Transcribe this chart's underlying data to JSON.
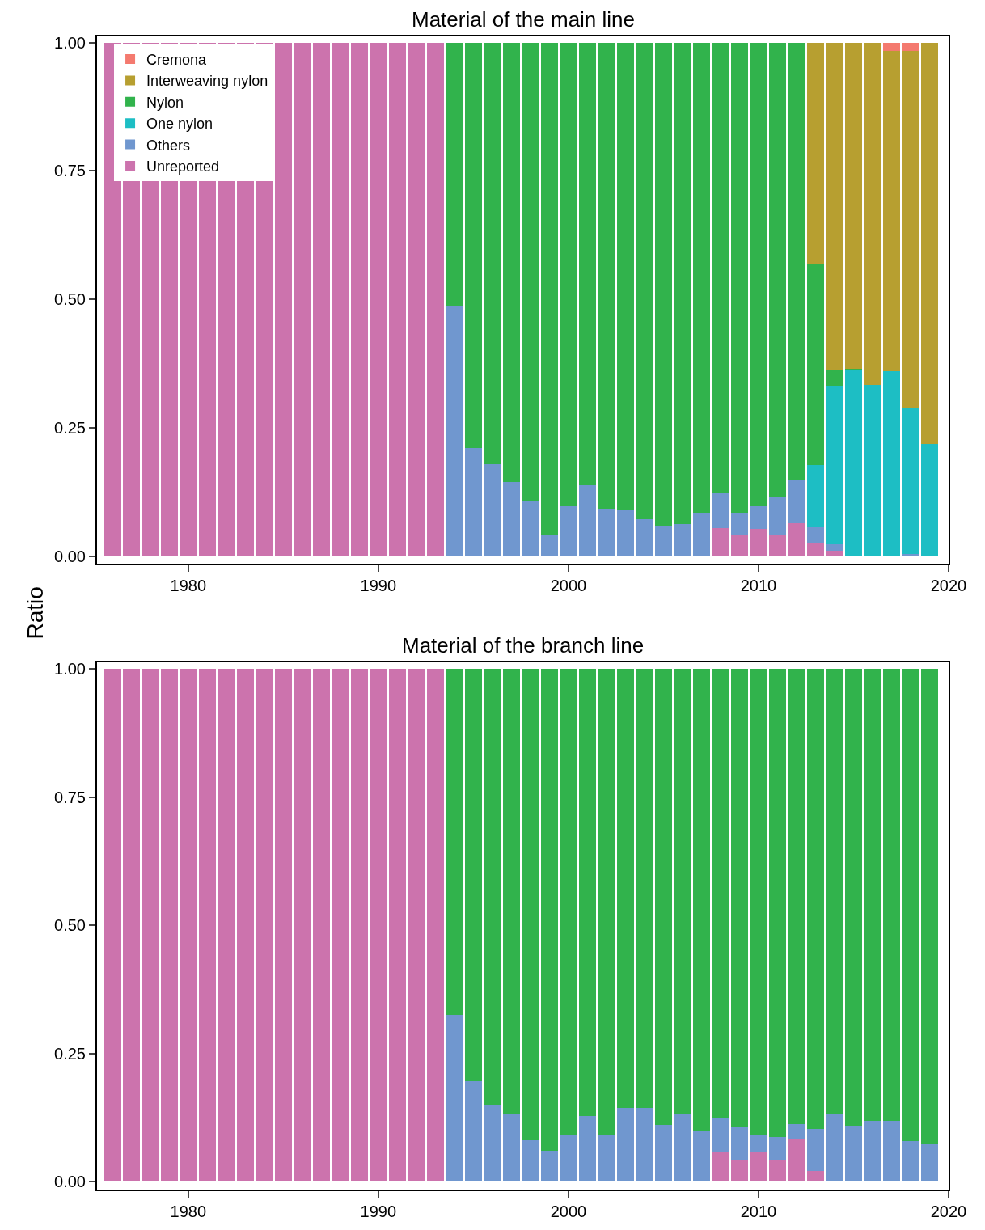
{
  "chart_data": [
    {
      "type": "bar",
      "stacked": true,
      "title": "Material of the main line",
      "ylabel": "Ratio",
      "legend": "top left",
      "x": [
        1976,
        1977,
        1978,
        1979,
        1980,
        1981,
        1982,
        1983,
        1984,
        1985,
        1986,
        1987,
        1988,
        1989,
        1990,
        1991,
        1992,
        1993,
        1994,
        1995,
        1996,
        1997,
        1998,
        1999,
        2000,
        2001,
        2002,
        2003,
        2004,
        2005,
        2006,
        2007,
        2008,
        2009,
        2010,
        2011,
        2012,
        2013,
        2014,
        2015,
        2016,
        2017,
        2018,
        2019
      ],
      "xlim": [
        1975.2,
        2020
      ],
      "xticks": [
        1980,
        1990,
        2000,
        2010,
        2020
      ],
      "ylim": [
        -0.015,
        1.012
      ],
      "yticks": [
        {
          "value": 0,
          "label": "0.00"
        },
        {
          "value": 0.25,
          "label": "0.25"
        },
        {
          "value": 0.5,
          "label": "0.50"
        },
        {
          "value": 0.75,
          "label": "0.75"
        },
        {
          "value": 1,
          "label": "1.00"
        }
      ],
      "series": [
        {
          "name": "Unreported",
          "color": "#cc73ad",
          "values": [
            1,
            1,
            1,
            1,
            1,
            1,
            1,
            1,
            1,
            1,
            1,
            1,
            1,
            1,
            1,
            1,
            1,
            1,
            0,
            0,
            0,
            0,
            0,
            0,
            0,
            0,
            0,
            0,
            0,
            0,
            0,
            0,
            0.055,
            0.041,
            0.054,
            0.041,
            0.064,
            0.025,
            0.011,
            0,
            0,
            0,
            0,
            0
          ]
        },
        {
          "name": "Others",
          "color": "#7097cf",
          "values": [
            0,
            0,
            0,
            0,
            0,
            0,
            0,
            0,
            0,
            0,
            0,
            0,
            0,
            0,
            0,
            0,
            0,
            0,
            0.486,
            0.21,
            0.179,
            0.145,
            0.109,
            0.042,
            0.097,
            0.138,
            0.091,
            0.09,
            0.072,
            0.058,
            0.062,
            0.085,
            0.067,
            0.044,
            0.043,
            0.074,
            0.083,
            0.032,
            0.012,
            0,
            0,
            0,
            0.004,
            0
          ]
        },
        {
          "name": "One nylon",
          "color": "#1dbec4",
          "values": [
            0,
            0,
            0,
            0,
            0,
            0,
            0,
            0,
            0,
            0,
            0,
            0,
            0,
            0,
            0,
            0,
            0,
            0,
            0,
            0,
            0,
            0,
            0,
            0,
            0,
            0,
            0,
            0,
            0,
            0,
            0,
            0,
            0,
            0,
            0,
            0,
            0,
            0.12,
            0.309,
            0.362,
            0.333,
            0.361,
            0.286,
            0.219
          ]
        },
        {
          "name": "Nylon",
          "color": "#31b34c",
          "values": [
            0,
            0,
            0,
            0,
            0,
            0,
            0,
            0,
            0,
            0,
            0,
            0,
            0,
            0,
            0,
            0,
            0,
            0,
            0.514,
            0.79,
            0.821,
            0.855,
            0.891,
            0.958,
            0.903,
            0.862,
            0.909,
            0.91,
            0.928,
            0.942,
            0.938,
            0.915,
            0.878,
            0.915,
            0.903,
            0.885,
            0.853,
            0.393,
            0.03,
            0.003,
            0,
            0,
            0,
            0
          ]
        },
        {
          "name": "Interweaving nylon",
          "color": "#b79f30",
          "values": [
            0,
            0,
            0,
            0,
            0,
            0,
            0,
            0,
            0,
            0,
            0,
            0,
            0,
            0,
            0,
            0,
            0,
            0,
            0,
            0,
            0,
            0,
            0,
            0,
            0,
            0,
            0,
            0,
            0,
            0,
            0,
            0,
            0,
            0,
            0,
            0,
            0,
            0.43,
            0.638,
            0.635,
            0.667,
            0.623,
            0.694,
            0.781
          ]
        },
        {
          "name": "Cremona",
          "color": "#f47a6f",
          "values": [
            0,
            0,
            0,
            0,
            0,
            0,
            0,
            0,
            0,
            0,
            0,
            0,
            0,
            0,
            0,
            0,
            0,
            0,
            0,
            0,
            0,
            0,
            0,
            0,
            0,
            0,
            0,
            0,
            0,
            0,
            0,
            0,
            0,
            0,
            0,
            0,
            0,
            0,
            0,
            0,
            0,
            0.016,
            0.016,
            0
          ]
        }
      ]
    },
    {
      "type": "bar",
      "stacked": true,
      "title": "Material of the branch line",
      "legend": false,
      "x": [
        1976,
        1977,
        1978,
        1979,
        1980,
        1981,
        1982,
        1983,
        1984,
        1985,
        1986,
        1987,
        1988,
        1989,
        1990,
        1991,
        1992,
        1993,
        1994,
        1995,
        1996,
        1997,
        1998,
        1999,
        2000,
        2001,
        2002,
        2003,
        2004,
        2005,
        2006,
        2007,
        2008,
        2009,
        2010,
        2011,
        2012,
        2013,
        2014,
        2015,
        2016,
        2017,
        2018,
        2019
      ],
      "xlim": [
        1975.2,
        2020
      ],
      "xticks": [
        1980,
        1990,
        2000,
        2010,
        2020
      ],
      "ylim": [
        -0.015,
        1.014
      ],
      "yticks": [
        {
          "value": 0,
          "label": "0.00"
        },
        {
          "value": 0.25,
          "label": "0.25"
        },
        {
          "value": 0.5,
          "label": "0.50"
        },
        {
          "value": 0.75,
          "label": "0.75"
        },
        {
          "value": 1,
          "label": "1.00"
        }
      ],
      "series": [
        {
          "color": "#cc73ad",
          "values": [
            1,
            1,
            1,
            1,
            1,
            1,
            1,
            1,
            1,
            1,
            1,
            1,
            1,
            1,
            1,
            1,
            1,
            1,
            0,
            0,
            0,
            0,
            0,
            0,
            0,
            0,
            0,
            0,
            0,
            0,
            0,
            0,
            0.059,
            0.044,
            0.057,
            0.044,
            0.083,
            0.021,
            0,
            0,
            0,
            0,
            0,
            0
          ]
        },
        {
          "color": "#7097cf",
          "values": [
            0,
            0,
            0,
            0,
            0,
            0,
            0,
            0,
            0,
            0,
            0,
            0,
            0,
            0,
            0,
            0,
            0,
            0,
            0.325,
            0.196,
            0.149,
            0.132,
            0.081,
            0.06,
            0.091,
            0.129,
            0.091,
            0.144,
            0.145,
            0.111,
            0.134,
            0.1,
            0.067,
            0.062,
            0.034,
            0.044,
            0.03,
            0.082,
            0.133,
            0.11,
            0.119,
            0.119,
            0.079,
            0.074
          ]
        },
        {
          "color": "#31b34c",
          "values": [
            0,
            0,
            0,
            0,
            0,
            0,
            0,
            0,
            0,
            0,
            0,
            0,
            0,
            0,
            0,
            0,
            0,
            0,
            0.675,
            0.804,
            0.851,
            0.868,
            0.919,
            0.94,
            0.909,
            0.871,
            0.909,
            0.856,
            0.855,
            0.889,
            0.866,
            0.9,
            0.874,
            0.894,
            0.909,
            0.912,
            0.887,
            0.897,
            0.867,
            0.89,
            0.881,
            0.881,
            0.921,
            0.926
          ]
        }
      ]
    }
  ]
}
